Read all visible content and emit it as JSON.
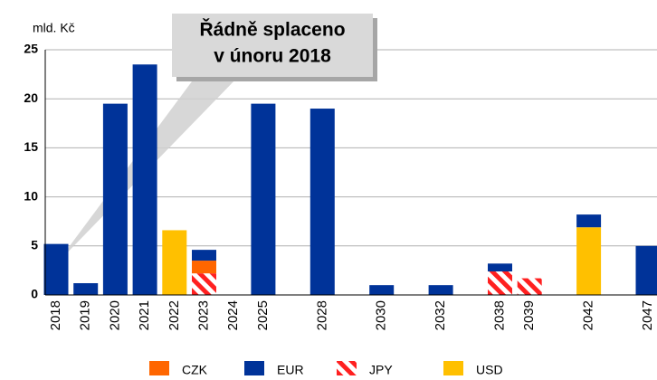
{
  "chart_data": {
    "type": "stacked_bar",
    "unit_label": "mld. Kč",
    "categories": [
      "2018",
      "2019",
      "2020",
      "2021",
      "2022",
      "2023",
      "2024",
      "2025",
      null,
      "2028",
      null,
      "2030",
      null,
      "2032",
      null,
      "2038",
      "2039",
      null,
      "2042",
      null,
      "2047"
    ],
    "series": [
      {
        "name": "CZK",
        "color": "#ff6600",
        "values": [
          0,
          0,
          0,
          0,
          0,
          1.3,
          0,
          0,
          null,
          0,
          null,
          0,
          null,
          0,
          null,
          0,
          0,
          null,
          0,
          null,
          0
        ]
      },
      {
        "name": "EUR",
        "color": "#003399",
        "values": [
          5.2,
          1.2,
          19.5,
          23.5,
          0,
          1.1,
          0,
          19.5,
          null,
          19.0,
          null,
          1.0,
          null,
          1.0,
          null,
          0.8,
          0,
          null,
          1.3,
          null,
          5.0
        ]
      },
      {
        "name": "JPY",
        "color": "#ff2020",
        "pattern": "hatch",
        "values": [
          0,
          0,
          0,
          0,
          0,
          2.2,
          0,
          0,
          null,
          0,
          null,
          0,
          null,
          0,
          null,
          2.4,
          1.7,
          null,
          0,
          null,
          0
        ]
      },
      {
        "name": "USD",
        "color": "#ffc000",
        "values": [
          0,
          0,
          0,
          0,
          6.6,
          0,
          0,
          0,
          null,
          0,
          null,
          0,
          null,
          0,
          null,
          0,
          0,
          null,
          6.9,
          null,
          0
        ]
      }
    ],
    "stack_order": [
      2,
      3,
      0,
      1
    ],
    "ylim": [
      0,
      25
    ],
    "yticks": [
      0,
      5,
      10,
      15,
      20,
      25
    ],
    "grid": true,
    "annotation": [
      "Řádně splaceno",
      "v únoru 2018"
    ]
  }
}
